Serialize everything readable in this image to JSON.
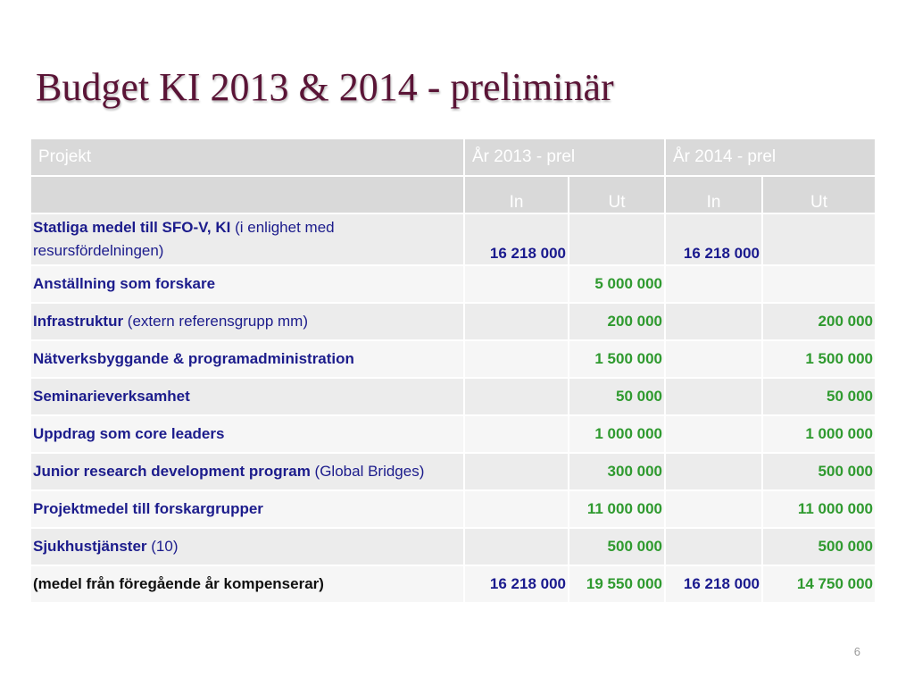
{
  "slide": {
    "title": "Budget KI 2013 & 2014 - preliminär",
    "page_number": "6"
  },
  "table": {
    "header": {
      "project": "Projekt",
      "year_2013": "År 2013 - prel",
      "year_2014": "År 2014 - prel"
    },
    "subheader": {
      "in_2013": "In",
      "ut_2013": "Ut",
      "in_2014": "In",
      "ut_2014": "Ut"
    },
    "rows": [
      {
        "bold": "Statliga medel till SFO-V, KI",
        "note": " (i enlighet med resursfördelningen)",
        "in_2013": "16 218 000",
        "ut_2013": "",
        "in_2014": "16 218 000",
        "ut_2014": ""
      },
      {
        "bold": "Anställning som forskare",
        "note": "",
        "in_2013": "",
        "ut_2013": "5 000 000",
        "in_2014": "",
        "ut_2014": ""
      },
      {
        "bold": "Infrastruktur",
        "note": " (extern referensgrupp mm)",
        "in_2013": "",
        "ut_2013": "200 000",
        "in_2014": "",
        "ut_2014": "200 000"
      },
      {
        "bold": "Nätverksbyggande & programadministration",
        "note": "",
        "in_2013": "",
        "ut_2013": "1 500 000",
        "in_2014": "",
        "ut_2014": "1 500 000"
      },
      {
        "bold": "Seminarieverksamhet",
        "note": "",
        "in_2013": "",
        "ut_2013": "50 000",
        "in_2014": "",
        "ut_2014": "50 000"
      },
      {
        "bold": "Uppdrag som core leaders",
        "note": "",
        "in_2013": "",
        "ut_2013": "1 000 000",
        "in_2014": "",
        "ut_2014": "1 000 000"
      },
      {
        "bold": "Junior research development program",
        "note": " (Global Bridges)",
        "in_2013": "",
        "ut_2013": "300 000",
        "in_2014": "",
        "ut_2014": "500 000"
      },
      {
        "bold": "Projektmedel till forskargrupper",
        "note": "",
        "in_2013": "",
        "ut_2013": "11 000 000",
        "in_2014": "",
        "ut_2014": "11 000 000"
      },
      {
        "bold": "Sjukhustjänster",
        "note": " (10)",
        "in_2013": "",
        "ut_2013": "500 000",
        "in_2014": "",
        "ut_2014": "500 000"
      }
    ],
    "total": {
      "label": "(medel från föregående år kompenserar)",
      "in_2013": "16 218 000",
      "ut_2013": "19 550 000",
      "in_2014": "16 218 000",
      "ut_2014": "14 750 000"
    }
  },
  "colors": {
    "title": "#5a1436",
    "header_bg": "#d9d9d9",
    "label_text": "#1c1c8c",
    "in_values": "#1a1a8e",
    "ut_values": "#2f9a2f"
  }
}
